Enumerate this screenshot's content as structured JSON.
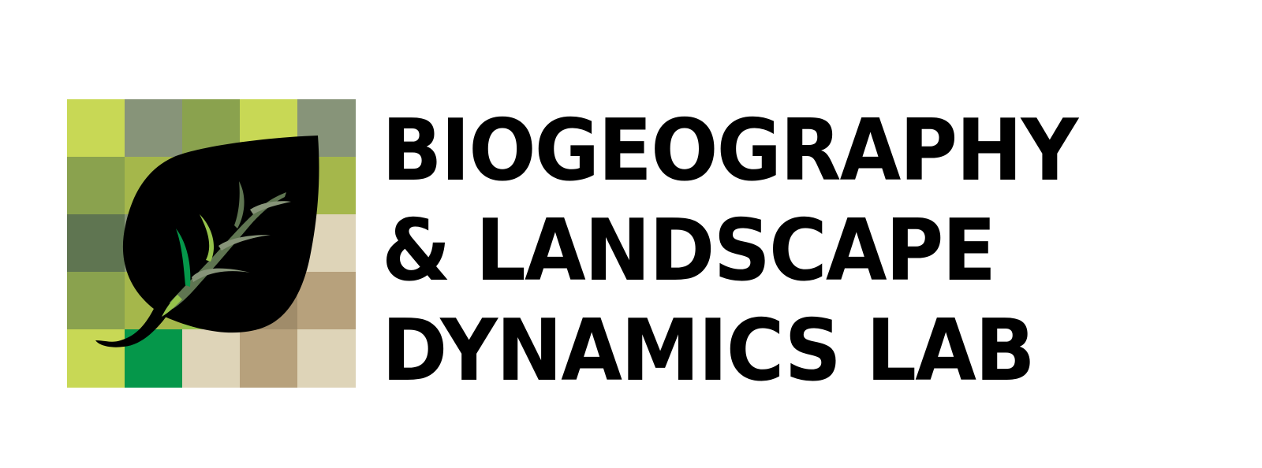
{
  "title": {
    "line1": "BIOGEOGRAPHY",
    "line2": "& LANDSCAPE",
    "line3": "DYNAMICS LAB"
  },
  "colors": {
    "text": "#000000",
    "leaf": "#000000",
    "lime": "#c8d855",
    "sage": "#879479",
    "olive": "#8aa24e",
    "moss": "#a5b74b",
    "forest": "#5f7551",
    "emerald": "#05974a",
    "sand": "#ded4b8",
    "tan": "#b7a17c",
    "bright_green": "#96c24b"
  },
  "icons": {
    "mosaic": "pixel-grid-landscape",
    "leaf": "leaf-icon"
  }
}
